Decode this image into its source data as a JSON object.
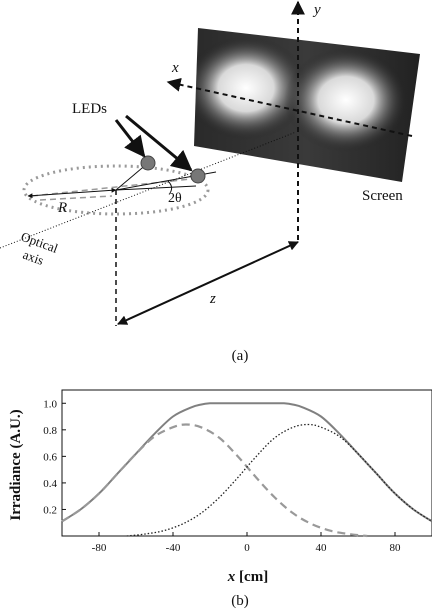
{
  "diagram_a": {
    "labels": {
      "y_axis": "y",
      "x_axis": "x",
      "leds": "LEDs",
      "screen": "Screen",
      "radius": "R",
      "angle": "2θ",
      "optical_axis_line1": "Optical",
      "optical_axis_line2": "axis",
      "distance": "z"
    },
    "caption": "(a)"
  },
  "chart_data": {
    "type": "line",
    "ylabel": "Irradiance (A.U.)",
    "xlabel_var": "x",
    "xlabel_unit": " [cm]",
    "xlim": [
      -100,
      100
    ],
    "ylim": [
      0,
      1.1
    ],
    "xticks": [
      -80,
      -40,
      0,
      40,
      80
    ],
    "yticks": [
      0.2,
      0.4,
      0.6,
      0.8,
      1.0
    ],
    "ytick_labels": [
      "0.2",
      "0.4",
      "0.6",
      "0.8",
      "1.0"
    ],
    "series": [
      {
        "style": "solid",
        "color": "#808080",
        "x": [
          -100,
          -90,
          -80,
          -70,
          -60,
          -50,
          -40,
          -30,
          -25,
          -20,
          -15,
          -10,
          0,
          10,
          15,
          20,
          25,
          30,
          40,
          50,
          60,
          70,
          80,
          90,
          100
        ],
        "y": [
          0.11,
          0.2,
          0.32,
          0.47,
          0.62,
          0.77,
          0.9,
          0.97,
          0.99,
          1.0,
          1.0,
          1.0,
          1.0,
          1.0,
          1.0,
          1.0,
          0.99,
          0.97,
          0.9,
          0.77,
          0.62,
          0.47,
          0.32,
          0.2,
          0.11
        ]
      },
      {
        "style": "dashed",
        "color": "#999999",
        "x": [
          -100,
          -90,
          -80,
          -70,
          -60,
          -50,
          -40,
          -33,
          -25,
          -15,
          -5,
          5,
          15,
          25,
          35,
          45,
          55,
          65
        ],
        "y": [
          0.11,
          0.2,
          0.32,
          0.47,
          0.62,
          0.75,
          0.82,
          0.84,
          0.82,
          0.74,
          0.6,
          0.44,
          0.29,
          0.17,
          0.09,
          0.04,
          0.015,
          0.0
        ]
      },
      {
        "style": "dotted",
        "color": "#222222",
        "x": [
          -65,
          -55,
          -45,
          -35,
          -25,
          -15,
          -5,
          5,
          15,
          25,
          33,
          40,
          50,
          60,
          70,
          80,
          90,
          100
        ],
        "y": [
          0.0,
          0.015,
          0.04,
          0.09,
          0.17,
          0.29,
          0.44,
          0.6,
          0.74,
          0.82,
          0.84,
          0.82,
          0.75,
          0.62,
          0.47,
          0.32,
          0.2,
          0.11
        ]
      }
    ]
  },
  "caption_b": "(b)"
}
